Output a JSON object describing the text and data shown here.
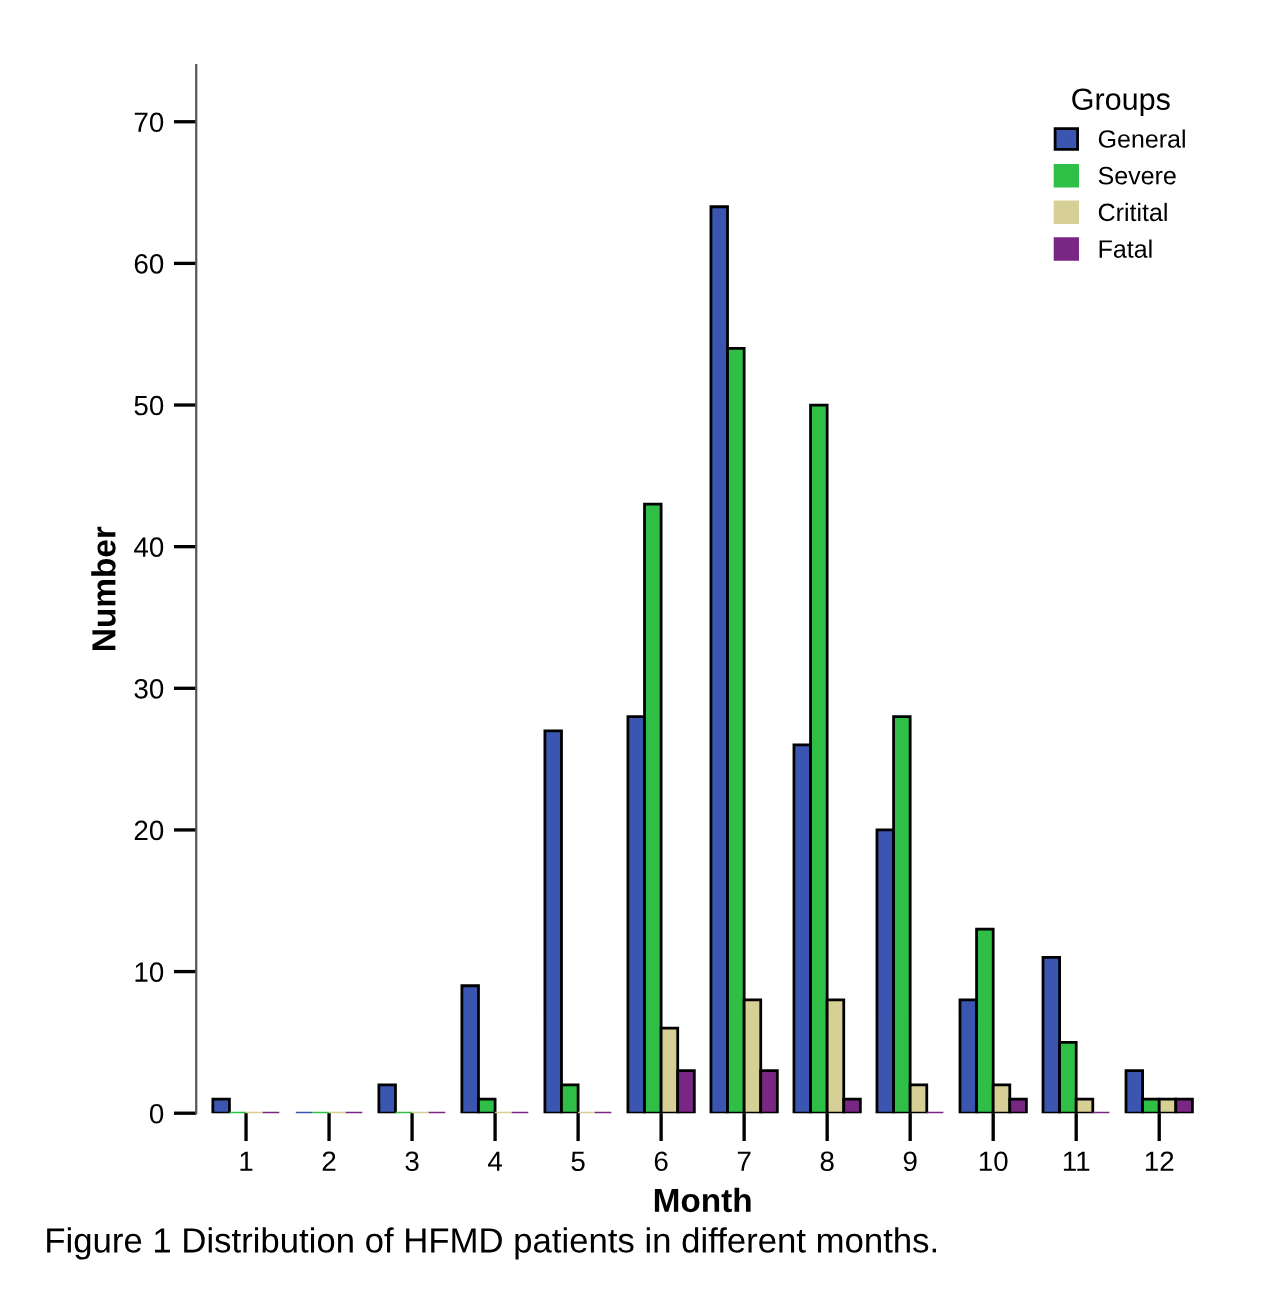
{
  "chart_data": {
    "type": "bar",
    "xlabel": "Month",
    "ylabel": "Number",
    "categories": [
      "1",
      "2",
      "3",
      "4",
      "5",
      "6",
      "7",
      "8",
      "9",
      "10",
      "11",
      "12"
    ],
    "series": [
      {
        "name": "General",
        "color": "#3a56b0",
        "values": [
          1,
          0,
          2,
          9,
          27,
          28,
          64,
          26,
          20,
          8,
          11,
          3
        ]
      },
      {
        "name": "Severe",
        "color": "#2fbf46",
        "values": [
          0,
          0,
          0,
          1,
          2,
          43,
          54,
          50,
          28,
          13,
          5,
          1
        ]
      },
      {
        "name": "Critital",
        "color": "#d6cf96",
        "values": [
          0,
          0,
          0,
          0,
          0,
          6,
          8,
          8,
          2,
          2,
          1,
          1
        ]
      },
      {
        "name": "Fatal",
        "color": "#7a2685",
        "values": [
          0,
          0,
          0,
          0,
          0,
          3,
          3,
          1,
          0,
          1,
          0,
          1
        ]
      }
    ],
    "ylim": [
      0,
      74
    ],
    "yticks": [
      0,
      10,
      20,
      30,
      40,
      50,
      60,
      70
    ],
    "grid": false,
    "legend": "top right",
    "legend_title": "Groups",
    "annotations": [
      "Figure 1 Distribution of HFMD patients in different months."
    ]
  }
}
